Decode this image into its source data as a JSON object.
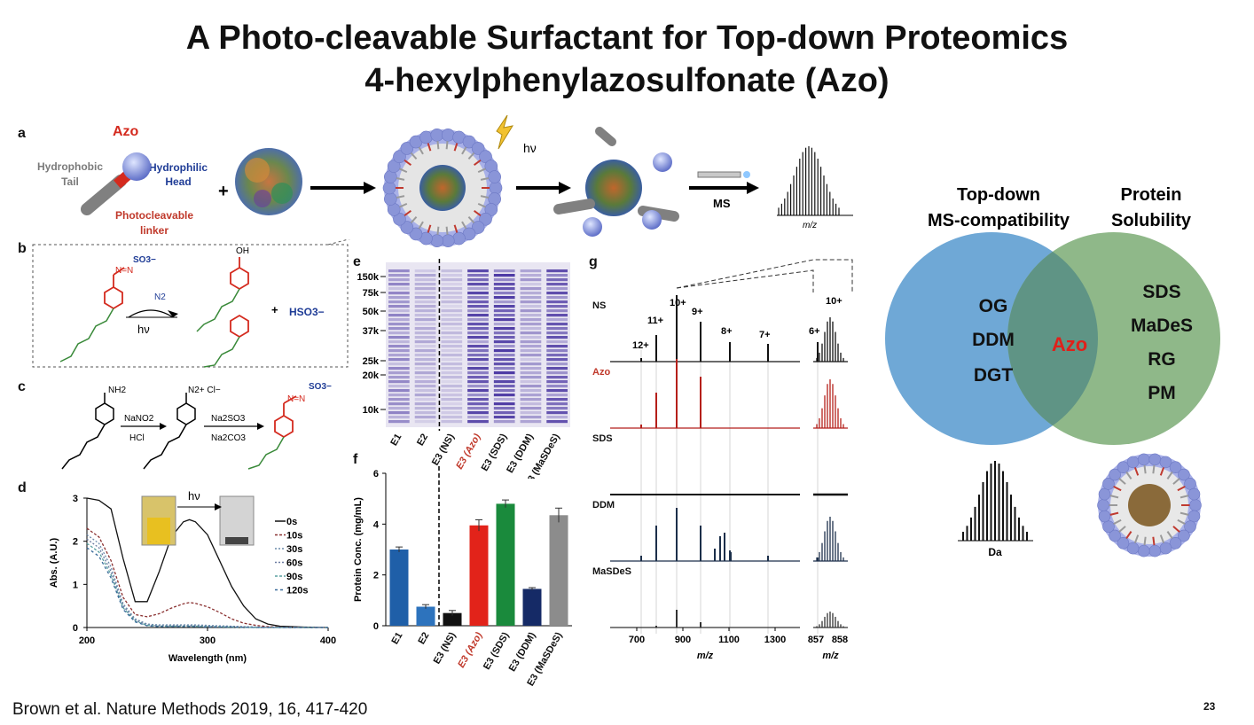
{
  "slide": {
    "title_line1": "A Photo-cleavable Surfactant for Top-down Proteomics",
    "title_line2": "4-hexylphenylazosulfonate (Azo)",
    "citation": "Brown et al. Nature Methods 2019, 16, 417-420",
    "page_number": "23"
  },
  "panel_a": {
    "label": "a",
    "azo": "Azo",
    "hydrophobic_tail": [
      "Hydrophobic",
      "Tail"
    ],
    "hydrophilic_head": [
      "Hydrophilic",
      "Head"
    ],
    "linker": [
      "Photocleavable",
      "linker"
    ],
    "plus": "+",
    "hv": "hν",
    "ms": "MS",
    "mz": "m/z"
  },
  "panel_b": {
    "label": "b",
    "so3": "SO3−",
    "oh": "OH",
    "n2": "N2",
    "hv": "hν",
    "hso3": "HSO3−",
    "plus": "+"
  },
  "panel_c": {
    "label": "c",
    "nh2": "NH2",
    "n2cl": "N2+ Cl−",
    "reagent1_top": "NaNO2",
    "reagent1_bottom": "HCl",
    "reagent2_top": "Na2SO3",
    "reagent2_bottom": "Na2CO3",
    "so3": "SO3−"
  },
  "panel_d": {
    "label": "d",
    "hv": "hν",
    "ylabel": "Abs. (A.U.)",
    "xlabel": "Wavelength (nm)",
    "yticks": [
      "0",
      "1",
      "2",
      "3"
    ],
    "xticks": [
      "200",
      "300",
      "400"
    ],
    "legend": [
      "0s",
      "10s",
      "30s",
      "60s",
      "90s",
      "120s"
    ]
  },
  "panel_e": {
    "label": "e",
    "markers": [
      "150k",
      "75k",
      "50k",
      "37k",
      "25k",
      "20k",
      "10k"
    ],
    "lanes": [
      "E1",
      "E2",
      "E3 (NS)",
      "E3 (Azo)",
      "E3 (SDS)",
      "E3 (DDM)",
      "E3 (MaSDeS)"
    ]
  },
  "panel_f": {
    "label": "f",
    "ylabel": "Protein Conc. (mg/mL)",
    "yticks": [
      "0",
      "2",
      "4",
      "6"
    ]
  },
  "panel_g": {
    "label": "g",
    "traces": [
      "NS",
      "Azo",
      "SDS",
      "DDM",
      "MaSDeS"
    ],
    "charges": [
      "12+",
      "11+",
      "10+",
      "9+",
      "8+",
      "7+",
      "6+"
    ],
    "inset_charge": "10+",
    "xticks": [
      "700",
      "900",
      "1100",
      "1300"
    ],
    "inset_xticks": [
      "857",
      "858"
    ],
    "xlabel": "m/z"
  },
  "venn": {
    "left_title": [
      "Top-down",
      "MS-compatibility"
    ],
    "right_title": [
      "Protein",
      "Solubility"
    ],
    "left_items": [
      "OG",
      "DDM",
      "DGT"
    ],
    "right_items": [
      "SDS",
      "MaDeS",
      "RG",
      "PM"
    ],
    "center": "Azo",
    "spectrum_label": "Da",
    "colors": {
      "left": "#6fa8d6",
      "right": "#8fb889",
      "overlap": "#5f9485",
      "center_text": "#e0201a"
    }
  },
  "chart_data": [
    {
      "type": "bar",
      "categories": [
        "E1",
        "E2",
        "E3 (NS)",
        "E3 (Azo)",
        "E3 (SDS)",
        "E3 (DDM)",
        "E3 (MaSDeS)"
      ],
      "values": [
        3.0,
        0.75,
        0.5,
        3.95,
        4.8,
        1.45,
        4.35
      ],
      "errors": [
        0.1,
        0.08,
        0.1,
        0.22,
        0.15,
        0.05,
        0.28
      ],
      "colors": [
        "#1f5fa8",
        "#2d73bd",
        "#111111",
        "#e2231a",
        "#1a8a3c",
        "#152a66",
        "#8c8c8c"
      ],
      "ylabel": "Protein Conc. (mg/mL)",
      "ylim": [
        0,
        6
      ]
    },
    {
      "type": "line",
      "xlabel": "Wavelength (nm)",
      "ylabel": "Abs. (A.U.)",
      "xlim": [
        200,
        400
      ],
      "ylim": [
        0,
        3
      ],
      "series": [
        {
          "name": "0s",
          "x": [
            200,
            210,
            220,
            230,
            240,
            250,
            260,
            270,
            280,
            285,
            290,
            300,
            310,
            320,
            330,
            340,
            350,
            360,
            380,
            400
          ],
          "y": [
            3.0,
            2.95,
            2.75,
            1.6,
            0.6,
            0.6,
            1.3,
            2.1,
            2.45,
            2.5,
            2.45,
            2.15,
            1.55,
            0.95,
            0.5,
            0.2,
            0.08,
            0.03,
            0.01,
            0
          ]
        },
        {
          "name": "10s",
          "x": [
            200,
            210,
            220,
            230,
            240,
            250,
            260,
            270,
            280,
            285,
            290,
            300,
            310,
            320,
            330,
            340,
            350,
            360,
            380,
            400
          ],
          "y": [
            2.3,
            2.1,
            1.55,
            0.7,
            0.3,
            0.25,
            0.32,
            0.45,
            0.55,
            0.58,
            0.56,
            0.48,
            0.35,
            0.2,
            0.1,
            0.05,
            0.02,
            0.01,
            0,
            0
          ]
        },
        {
          "name": "30s",
          "x": [
            200,
            210,
            220,
            230,
            240,
            250,
            260,
            270,
            280,
            290,
            300,
            320,
            340,
            360,
            400
          ],
          "y": [
            2.15,
            1.95,
            1.4,
            0.55,
            0.2,
            0.08,
            0.06,
            0.06,
            0.06,
            0.06,
            0.05,
            0.03,
            0.01,
            0,
            0
          ]
        },
        {
          "name": "60s",
          "x": [
            200,
            210,
            220,
            230,
            240,
            250,
            260,
            270,
            280,
            290,
            300,
            320,
            340,
            360,
            400
          ],
          "y": [
            2.05,
            1.85,
            1.3,
            0.5,
            0.17,
            0.06,
            0.04,
            0.04,
            0.04,
            0.04,
            0.03,
            0.02,
            0.01,
            0,
            0
          ]
        },
        {
          "name": "90s",
          "x": [
            200,
            210,
            220,
            230,
            240,
            250,
            260,
            270,
            280,
            290,
            300,
            320,
            340,
            360,
            400
          ],
          "y": [
            1.95,
            1.75,
            1.22,
            0.46,
            0.15,
            0.05,
            0.03,
            0.03,
            0.03,
            0.03,
            0.02,
            0.01,
            0,
            0,
            0
          ]
        },
        {
          "name": "120s",
          "x": [
            200,
            210,
            220,
            230,
            240,
            250,
            260,
            270,
            280,
            290,
            300,
            320,
            340,
            360,
            400
          ],
          "y": [
            1.85,
            1.65,
            1.15,
            0.42,
            0.13,
            0.04,
            0.02,
            0.02,
            0.02,
            0.02,
            0.01,
            0.01,
            0,
            0,
            0
          ]
        }
      ]
    }
  ]
}
